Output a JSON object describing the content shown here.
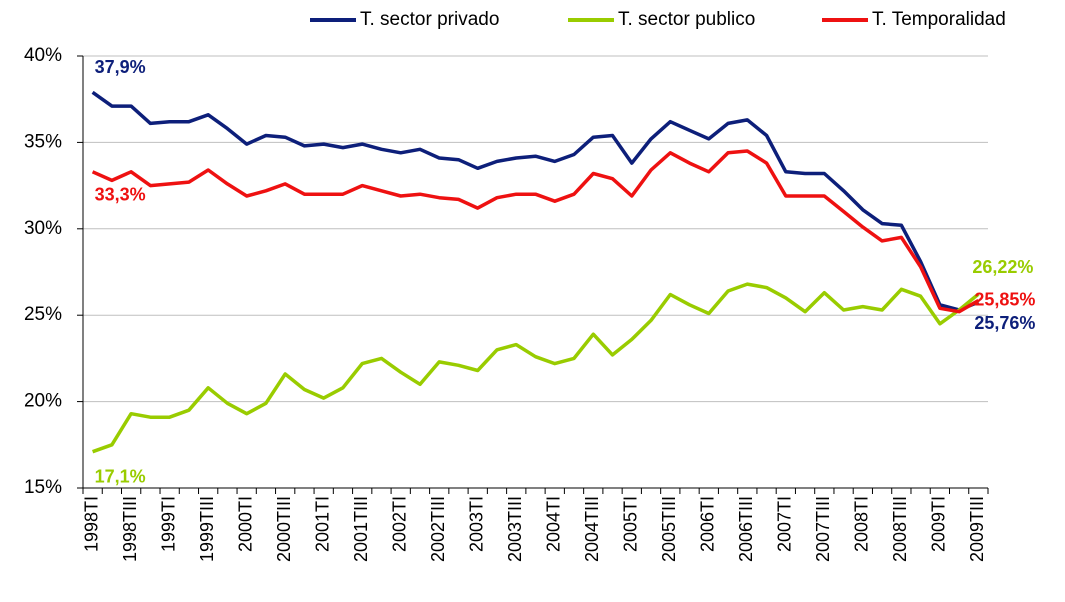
{
  "chart_data": {
    "type": "line",
    "categories": [
      "1998TI",
      null,
      "1998TIII",
      null,
      "1999TI",
      null,
      "1999TIII",
      null,
      "2000TI",
      null,
      "2000TIII",
      null,
      "2001TI",
      null,
      "2001TIII",
      null,
      "2002TI",
      null,
      "2002TIII",
      null,
      "2003TI",
      null,
      "2003TIII",
      null,
      "2004TI",
      null,
      "2004TIII",
      null,
      "2005TI",
      null,
      "2005TIII",
      null,
      "2006TI",
      null,
      "2006TIII",
      null,
      "2007TI",
      null,
      "2007TIII",
      null,
      "2008TI",
      null,
      "2008TIII",
      null,
      "2009TI",
      null,
      "2009TIII"
    ],
    "series": [
      {
        "name": "T. sector privado",
        "color": "#0d1f7a",
        "values": [
          37.9,
          37.1,
          37.1,
          36.1,
          36.2,
          36.2,
          36.6,
          35.8,
          34.9,
          35.4,
          35.3,
          34.8,
          34.9,
          34.7,
          34.9,
          34.6,
          34.4,
          34.6,
          34.1,
          34.0,
          33.5,
          33.9,
          34.1,
          34.2,
          33.9,
          34.3,
          35.3,
          35.4,
          33.8,
          35.2,
          36.2,
          35.7,
          35.2,
          36.1,
          36.3,
          35.4,
          33.3,
          33.2,
          33.2,
          32.2,
          31.1,
          30.3,
          30.2,
          28.1,
          25.6,
          25.3,
          25.76
        ],
        "value_labels": [
          "37,9%",
          null,
          null,
          null,
          null,
          null,
          null,
          null,
          null,
          null,
          null,
          null,
          null,
          null,
          null,
          null,
          null,
          null,
          null,
          null,
          null,
          null,
          null,
          null,
          null,
          null,
          null,
          null,
          null,
          null,
          null,
          null,
          null,
          null,
          null,
          null,
          null,
          null,
          null,
          null,
          null,
          null,
          null,
          null,
          null,
          null,
          "25,76%"
        ]
      },
      {
        "name": "T. sector publico",
        "color": "#99cc00",
        "values": [
          17.1,
          17.5,
          19.3,
          19.1,
          19.1,
          19.5,
          20.8,
          19.9,
          19.3,
          19.9,
          21.6,
          20.7,
          20.2,
          20.8,
          22.2,
          22.5,
          21.7,
          21.0,
          22.3,
          22.1,
          21.8,
          23.0,
          23.3,
          22.6,
          22.2,
          22.5,
          23.9,
          22.7,
          23.6,
          24.7,
          26.2,
          25.6,
          25.1,
          26.4,
          26.8,
          26.6,
          26.0,
          25.2,
          26.3,
          25.3,
          25.5,
          25.3,
          26.5,
          26.1,
          24.5,
          25.3,
          26.22
        ],
        "value_labels": [
          "17,1%",
          null,
          null,
          null,
          null,
          null,
          null,
          null,
          null,
          null,
          null,
          null,
          null,
          null,
          null,
          null,
          null,
          null,
          null,
          null,
          null,
          null,
          null,
          null,
          null,
          null,
          null,
          null,
          null,
          null,
          null,
          null,
          null,
          null,
          null,
          null,
          null,
          null,
          null,
          null,
          null,
          null,
          null,
          null,
          null,
          null,
          "26,22%"
        ]
      },
      {
        "name": "T. Temporalidad",
        "color": "#ee1111",
        "values": [
          33.3,
          32.8,
          33.3,
          32.5,
          32.6,
          32.7,
          33.4,
          32.6,
          31.9,
          32.2,
          32.6,
          32.0,
          32.0,
          32.0,
          32.5,
          32.2,
          31.9,
          32.0,
          31.8,
          31.7,
          31.2,
          31.8,
          32.0,
          32.0,
          31.6,
          32.0,
          33.2,
          32.9,
          31.9,
          33.4,
          34.4,
          33.8,
          33.3,
          34.4,
          34.5,
          33.8,
          31.9,
          31.9,
          31.9,
          31.0,
          30.1,
          29.3,
          29.5,
          27.8,
          25.4,
          25.2,
          25.85
        ],
        "value_labels": [
          "33,3%",
          null,
          null,
          null,
          null,
          null,
          null,
          null,
          null,
          null,
          null,
          null,
          null,
          null,
          null,
          null,
          null,
          null,
          null,
          null,
          null,
          null,
          null,
          null,
          null,
          null,
          null,
          null,
          null,
          null,
          null,
          null,
          null,
          null,
          null,
          null,
          null,
          null,
          null,
          null,
          null,
          null,
          null,
          null,
          null,
          null,
          "25,85%"
        ]
      }
    ],
    "ylim": [
      15,
      40
    ],
    "yticks": [
      {
        "value": 15,
        "label": "15%"
      },
      {
        "value": 20,
        "label": "20%"
      },
      {
        "value": 25,
        "label": "25%"
      },
      {
        "value": 30,
        "label": "30%"
      },
      {
        "value": 35,
        "label": "35%"
      },
      {
        "value": 40,
        "label": "40%"
      }
    ],
    "grid": true,
    "legend": "top"
  }
}
